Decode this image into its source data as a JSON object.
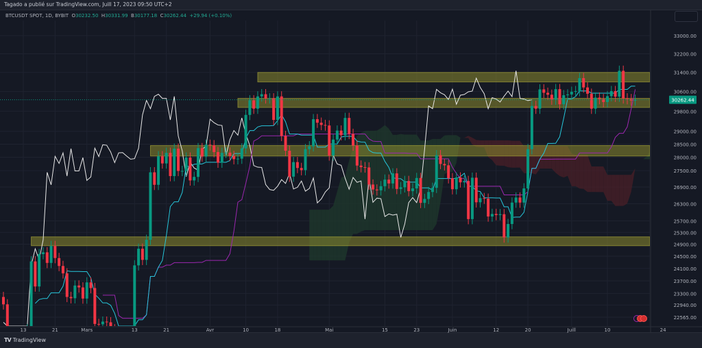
{
  "publish_line": "Tagado a publié sur TradingView.com, Juill 17, 2023 09:50 UTC+2",
  "legend": {
    "symbol": "BTCUSDT SPOT, 1D, BYBIT",
    "o_label": "O",
    "o": "30232.50",
    "h_label": "H",
    "h": "30331.99",
    "l_label": "B",
    "l": "30177.18",
    "c_label": "C",
    "c": "30262.44",
    "change": "+29.94 (+0.10%)"
  },
  "footer": {
    "logo_text": "TradingView",
    "logo_icon": "tradingview-logo-icon"
  },
  "colors": {
    "up": "#089981",
    "down": "#f23645",
    "tenkan": "#26c6da",
    "kijun": "#9c27b0",
    "chikou": "#e8e8e8",
    "zone": "#8d8a2e",
    "cloud_up": "#1f3a2c",
    "cloud_down": "#4a1f27",
    "last_price": "#089981"
  },
  "chart_data": {
    "type": "candlestick",
    "symbol": "BTCUSDT",
    "timeframe": "1D",
    "start_date": "2023-02-08",
    "y_scale": "log",
    "ylim": [
      22380,
      33600
    ],
    "grid": true,
    "last_price": "30262.44",
    "closes": [
      22960,
      21800,
      21630,
      21860,
      21790,
      21780,
      22200,
      24330,
      23520,
      24570,
      24630,
      24280,
      24840,
      24440,
      24180,
      23940,
      23190,
      23150,
      23550,
      23490,
      23140,
      23650,
      23470,
      22360,
      22350,
      22430,
      22410,
      22200,
      21700,
      20360,
      20190,
      20630,
      22160,
      24200,
      24750,
      24380,
      25050,
      27440,
      26980,
      28040,
      27770,
      28170,
      27300,
      28330,
      27490,
      27490,
      27990,
      27140,
      27270,
      28350,
      28030,
      28480,
      28460,
      28200,
      27800,
      28170,
      28180,
      28050,
      27930,
      27950,
      28340,
      29650,
      30240,
      29900,
      30400,
      30490,
      30320,
      30320,
      29450,
      30400,
      28820,
      28250,
      27280,
      27820,
      27600,
      27520,
      28310,
      28420,
      29480,
      29340,
      29250,
      29230,
      28070,
      28680,
      29030,
      28850,
      29530,
      28900,
      28450,
      27690,
      27630,
      27620,
      26990,
      26810,
      26780,
      26930,
      27170,
      27030,
      27400,
      26830,
      26890,
      27120,
      26750,
      26850,
      27230,
      26330,
      26470,
      26720,
      26870,
      28080,
      27750,
      27700,
      27220,
      26820,
      27250,
      27070,
      27120,
      25760,
      27240,
      26350,
      26500,
      26480,
      25850,
      25940,
      25900,
      25930,
      25130,
      25590,
      26340,
      26520,
      26340,
      26850,
      28310,
      30010,
      29900,
      30690,
      30550,
      30470,
      30270,
      30700,
      30080,
      30450,
      30480,
      30590,
      30620,
      31160,
      30770,
      30510,
      29900,
      30350,
      30290,
      30170,
      30410,
      30620,
      30390,
      31470,
      30320,
      30290,
      30230,
      30262
    ],
    "indicators": [
      "Ichimoku Cloud (9, 26, 52, 26)"
    ],
    "zones": [
      {
        "from_date_index": 64,
        "low": 31000,
        "high": 31400
      },
      {
        "from_date_index": 59,
        "low": 29950,
        "high": 30320
      },
      {
        "from_date_index": 37,
        "low": 28050,
        "high": 28450
      },
      {
        "from_date_index": 7,
        "low": 24850,
        "high": 25150
      }
    ],
    "y_ticks": [
      "33000.00",
      "32200.00",
      "31400.00",
      "30600.00",
      "29800.00",
      "29000.00",
      "28500.00",
      "28000.00",
      "27500.00",
      "26900.00",
      "26300.00",
      "25700.00",
      "25300.00",
      "24900.00",
      "24500.00",
      "24100.00",
      "23700.00",
      "23300.00",
      "22940.00",
      "22565.00"
    ],
    "x_ticks": [
      {
        "label": "13",
        "day": 5
      },
      {
        "label": "21",
        "day": 13
      },
      {
        "label": "Mars",
        "day": 21
      },
      {
        "label": "13",
        "day": 33
      },
      {
        "label": "21",
        "day": 41
      },
      {
        "label": "Avr",
        "day": 52
      },
      {
        "label": "10",
        "day": 61
      },
      {
        "label": "18",
        "day": 69
      },
      {
        "label": "Mai",
        "day": 82
      },
      {
        "label": "15",
        "day": 96
      },
      {
        "label": "23",
        "day": 104
      },
      {
        "label": "Juin",
        "day": 113
      },
      {
        "label": "12",
        "day": 124
      },
      {
        "label": "20",
        "day": 132
      },
      {
        "label": "Juill",
        "day": 143
      },
      {
        "label": "10",
        "day": 152
      },
      {
        "label": "24",
        "day": 166
      }
    ]
  }
}
